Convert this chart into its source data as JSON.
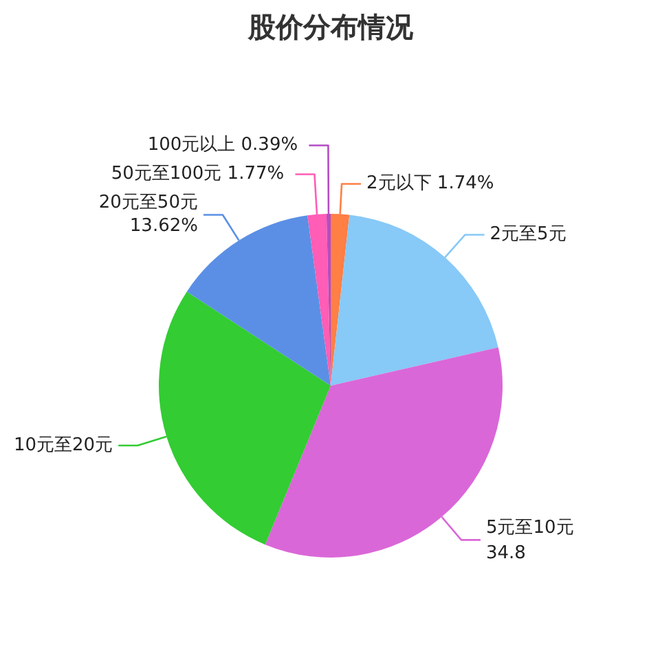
{
  "chart_data": {
    "type": "pie",
    "title": "股价分布情况",
    "categories": [
      "2元以下",
      "2元至5元",
      "5元至10元",
      "10元至20元",
      "20元至50元",
      "50元至100元",
      "100元以上"
    ],
    "values": [
      1.74,
      19.68,
      34.8,
      28.0,
      13.62,
      1.77,
      0.39
    ],
    "colors": [
      "#ff7f45",
      "#87c9f7",
      "#da67d8",
      "#33cc33",
      "#5b8fe5",
      "#ff5db6",
      "#b34dc4"
    ],
    "value_labels": [
      "1.74%",
      null,
      "34.8",
      null,
      "13.62%",
      "1.77%",
      "0.39%"
    ]
  }
}
